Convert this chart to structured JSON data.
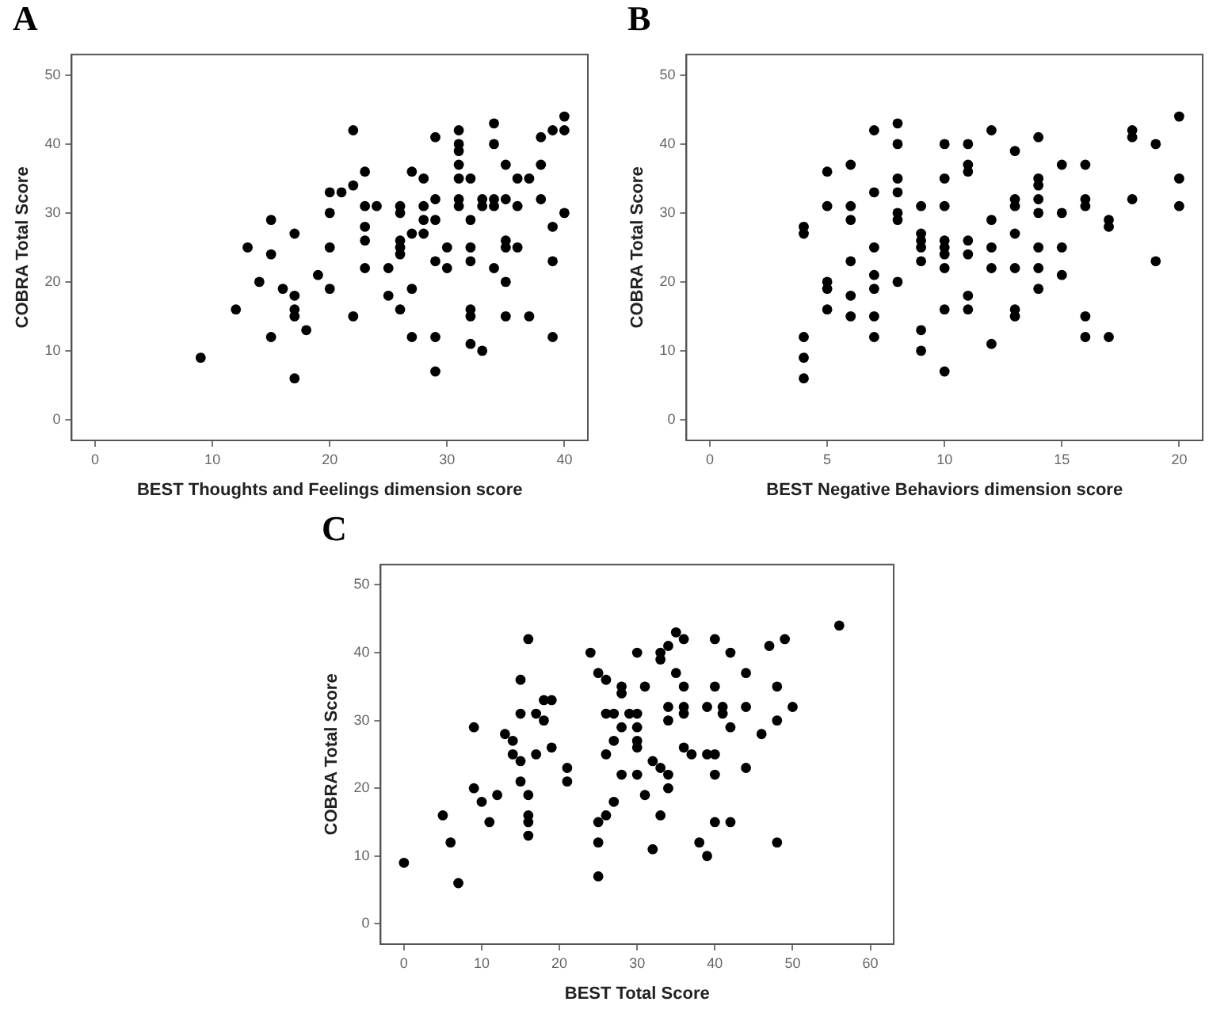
{
  "chart_data": [
    {
      "type": "scatter",
      "title": "A",
      "xlabel": "BEST Thoughts and Feelings dimension score",
      "ylabel": "COBRA Total Score",
      "color": "#000000",
      "marker": "circle",
      "grid": false,
      "xlim": [
        -2,
        42
      ],
      "xticks": [
        0,
        10,
        20,
        30,
        40
      ],
      "ylim": [
        -3,
        53
      ],
      "yticks": [
        0,
        10,
        20,
        30,
        40,
        50
      ],
      "x": [
        9,
        12,
        13,
        14,
        15,
        15,
        15,
        16,
        17,
        17,
        17,
        17,
        17,
        18,
        19,
        20,
        20,
        20,
        20,
        21,
        22,
        22,
        22,
        23,
        23,
        23,
        23,
        23,
        24,
        25,
        25,
        26,
        26,
        26,
        26,
        26,
        26,
        27,
        27,
        27,
        27,
        28,
        28,
        28,
        28,
        29,
        29,
        29,
        29,
        29,
        29,
        30,
        30,
        31,
        31,
        31,
        31,
        31,
        31,
        31,
        32,
        32,
        32,
        32,
        32,
        32,
        32,
        33,
        33,
        33,
        34,
        34,
        34,
        34,
        34,
        35,
        35,
        35,
        35,
        35,
        35,
        36,
        36,
        36,
        37,
        37,
        38,
        38,
        38,
        39,
        39,
        39,
        39,
        40,
        40,
        40
      ],
      "values": [
        9,
        16,
        25,
        20,
        29,
        24,
        12,
        19,
        27,
        18,
        16,
        15,
        6,
        13,
        21,
        33,
        30,
        25,
        19,
        33,
        42,
        34,
        15,
        36,
        31,
        28,
        26,
        22,
        31,
        22,
        18,
        31,
        30,
        26,
        25,
        24,
        16,
        36,
        27,
        19,
        12,
        35,
        31,
        29,
        27,
        41,
        32,
        29,
        23,
        12,
        7,
        25,
        22,
        42,
        40,
        39,
        37,
        35,
        32,
        31,
        35,
        29,
        25,
        23,
        16,
        15,
        11,
        32,
        31,
        10,
        43,
        40,
        32,
        31,
        22,
        37,
        32,
        26,
        25,
        20,
        15,
        35,
        31,
        25,
        35,
        15,
        41,
        37,
        32,
        42,
        28,
        23,
        12,
        44,
        42,
        30
      ]
    },
    {
      "type": "scatter",
      "title": "B",
      "xlabel": "BEST Negative Behaviors dimension score",
      "ylabel": "COBRA Total Score",
      "color": "#000000",
      "marker": "circle",
      "grid": false,
      "xlim": [
        -1,
        21
      ],
      "xticks": [
        0,
        5,
        10,
        15,
        20
      ],
      "ylim": [
        -3,
        53
      ],
      "yticks": [
        0,
        10,
        20,
        30,
        40,
        50
      ],
      "x": [
        4,
        4,
        4,
        4,
        4,
        5,
        5,
        5,
        5,
        5,
        6,
        6,
        6,
        6,
        6,
        6,
        7,
        7,
        7,
        7,
        7,
        7,
        7,
        8,
        8,
        8,
        8,
        8,
        8,
        8,
        9,
        9,
        9,
        9,
        9,
        9,
        9,
        10,
        10,
        10,
        10,
        10,
        10,
        10,
        10,
        10,
        11,
        11,
        11,
        11,
        11,
        11,
        11,
        12,
        12,
        12,
        12,
        12,
        13,
        13,
        13,
        13,
        13,
        13,
        13,
        14,
        14,
        14,
        14,
        14,
        14,
        14,
        14,
        15,
        15,
        15,
        15,
        16,
        16,
        16,
        16,
        16,
        17,
        17,
        17,
        18,
        18,
        18,
        19,
        19,
        20,
        20,
        20
      ],
      "values": [
        28,
        27,
        12,
        9,
        6,
        36,
        31,
        20,
        19,
        16,
        37,
        31,
        29,
        23,
        18,
        15,
        42,
        33,
        25,
        21,
        19,
        15,
        12,
        43,
        40,
        35,
        33,
        30,
        29,
        20,
        31,
        27,
        26,
        25,
        23,
        13,
        10,
        40,
        35,
        31,
        26,
        25,
        24,
        22,
        16,
        7,
        40,
        37,
        36,
        26,
        24,
        18,
        16,
        42,
        29,
        25,
        22,
        11,
        39,
        32,
        31,
        27,
        22,
        16,
        15,
        41,
        35,
        34,
        32,
        30,
        25,
        22,
        19,
        37,
        30,
        25,
        21,
        37,
        32,
        31,
        15,
        12,
        29,
        28,
        12,
        42,
        41,
        32,
        40,
        23,
        44,
        35,
        31
      ]
    },
    {
      "type": "scatter",
      "title": "C",
      "xlabel": "BEST Total Score",
      "ylabel": "COBRA Total Score",
      "color": "#000000",
      "marker": "circle",
      "grid": false,
      "xlim": [
        -3,
        63
      ],
      "xticks": [
        0,
        10,
        20,
        30,
        40,
        50,
        60
      ],
      "ylim": [
        -3,
        53
      ],
      "yticks": [
        0,
        10,
        20,
        30,
        40,
        50
      ],
      "x": [
        0,
        5,
        6,
        7,
        9,
        9,
        10,
        11,
        12,
        13,
        14,
        14,
        15,
        15,
        15,
        15,
        16,
        16,
        16,
        16,
        16,
        17,
        17,
        18,
        18,
        19,
        19,
        21,
        21,
        24,
        25,
        25,
        25,
        25,
        26,
        26,
        26,
        26,
        27,
        27,
        27,
        28,
        28,
        28,
        28,
        29,
        30,
        30,
        30,
        30,
        30,
        30,
        31,
        31,
        32,
        32,
        33,
        33,
        33,
        33,
        34,
        34,
        34,
        34,
        34,
        35,
        35,
        36,
        36,
        36,
        36,
        36,
        37,
        38,
        39,
        39,
        39,
        40,
        40,
        40,
        40,
        40,
        41,
        41,
        42,
        42,
        42,
        44,
        44,
        44,
        46,
        47,
        48,
        48,
        48,
        49,
        50,
        56
      ],
      "values": [
        9,
        16,
        12,
        6,
        29,
        20,
        18,
        15,
        19,
        28,
        27,
        25,
        36,
        31,
        24,
        21,
        42,
        19,
        16,
        15,
        13,
        31,
        25,
        33,
        30,
        33,
        26,
        23,
        21,
        40,
        37,
        15,
        12,
        7,
        36,
        31,
        25,
        16,
        31,
        27,
        18,
        35,
        34,
        29,
        22,
        31,
        40,
        31,
        29,
        27,
        26,
        22,
        35,
        19,
        24,
        11,
        40,
        39,
        23,
        16,
        41,
        32,
        30,
        22,
        20,
        43,
        37,
        42,
        35,
        32,
        31,
        26,
        25,
        12,
        32,
        25,
        10,
        42,
        35,
        25,
        22,
        15,
        32,
        31,
        40,
        29,
        15,
        37,
        32,
        23,
        28,
        41,
        35,
        30,
        12,
        42,
        32,
        44
      ]
    }
  ]
}
